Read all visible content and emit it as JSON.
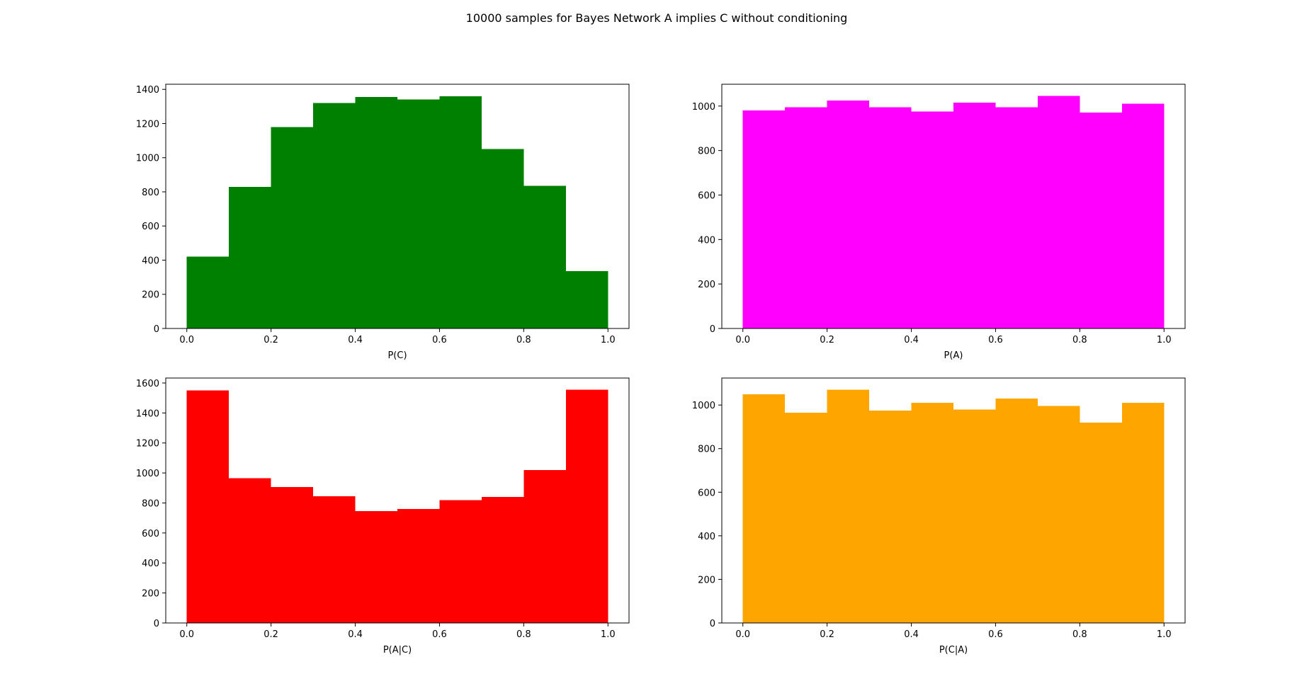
{
  "figure": {
    "title": "10000 samples for Bayes Network A implies C without conditioning"
  },
  "chart_data": [
    {
      "type": "bar",
      "subtype": "histogram",
      "xlabel": "P(C)",
      "color": "#008000",
      "bin_edges": [
        0.0,
        0.1,
        0.2,
        0.3,
        0.4,
        0.5,
        0.6,
        0.7,
        0.8,
        0.9,
        1.0
      ],
      "values": [
        420,
        830,
        1180,
        1320,
        1355,
        1340,
        1360,
        1050,
        835,
        335
      ],
      "xlim": [
        -0.05,
        1.05
      ],
      "ylim": [
        0,
        1430
      ],
      "xticks": [
        0.0,
        0.2,
        0.4,
        0.6,
        0.8,
        1.0
      ],
      "xtick_labels": [
        "0.0",
        "0.2",
        "0.4",
        "0.6",
        "0.8",
        "1.0"
      ],
      "yticks": [
        0,
        200,
        400,
        600,
        800,
        1000,
        1200,
        1400
      ],
      "ytick_labels": [
        "0",
        "200",
        "400",
        "600",
        "800",
        "1000",
        "1200",
        "1400"
      ]
    },
    {
      "type": "bar",
      "subtype": "histogram",
      "xlabel": "P(A)",
      "color": "#ff00ff",
      "bin_edges": [
        0.0,
        0.1,
        0.2,
        0.3,
        0.4,
        0.5,
        0.6,
        0.7,
        0.8,
        0.9,
        1.0
      ],
      "values": [
        980,
        995,
        1025,
        995,
        975,
        1015,
        995,
        1045,
        970,
        1010
      ],
      "xlim": [
        -0.05,
        1.05
      ],
      "ylim": [
        0,
        1098
      ],
      "xticks": [
        0.0,
        0.2,
        0.4,
        0.6,
        0.8,
        1.0
      ],
      "xtick_labels": [
        "0.0",
        "0.2",
        "0.4",
        "0.6",
        "0.8",
        "1.0"
      ],
      "yticks": [
        0,
        200,
        400,
        600,
        800,
        1000
      ],
      "ytick_labels": [
        "0",
        "200",
        "400",
        "600",
        "800",
        "1000"
      ]
    },
    {
      "type": "bar",
      "subtype": "histogram",
      "xlabel": "P(A|C)",
      "color": "#ff0000",
      "bin_edges": [
        0.0,
        0.1,
        0.2,
        0.3,
        0.4,
        0.5,
        0.6,
        0.7,
        0.8,
        0.9,
        1.0
      ],
      "values": [
        1550,
        965,
        905,
        845,
        745,
        760,
        820,
        840,
        1020,
        1555
      ],
      "xlim": [
        -0.05,
        1.05
      ],
      "ylim": [
        0,
        1633
      ],
      "xticks": [
        0.0,
        0.2,
        0.4,
        0.6,
        0.8,
        1.0
      ],
      "xtick_labels": [
        "0.0",
        "0.2",
        "0.4",
        "0.6",
        "0.8",
        "1.0"
      ],
      "yticks": [
        0,
        200,
        400,
        600,
        800,
        1000,
        1200,
        1400,
        1600
      ],
      "ytick_labels": [
        "0",
        "200",
        "400",
        "600",
        "800",
        "1000",
        "1200",
        "1400",
        "1600"
      ]
    },
    {
      "type": "bar",
      "subtype": "histogram",
      "xlabel": "P(C|A)",
      "color": "#ffa500",
      "bin_edges": [
        0.0,
        0.1,
        0.2,
        0.3,
        0.4,
        0.5,
        0.6,
        0.7,
        0.8,
        0.9,
        1.0
      ],
      "values": [
        1050,
        965,
        1070,
        975,
        1010,
        980,
        1030,
        995,
        920,
        1010
      ],
      "xlim": [
        -0.05,
        1.05
      ],
      "ylim": [
        0,
        1124
      ],
      "xticks": [
        0.0,
        0.2,
        0.4,
        0.6,
        0.8,
        1.0
      ],
      "xtick_labels": [
        "0.0",
        "0.2",
        "0.4",
        "0.6",
        "0.8",
        "1.0"
      ],
      "yticks": [
        0,
        200,
        400,
        600,
        800,
        1000
      ],
      "ytick_labels": [
        "0",
        "200",
        "400",
        "600",
        "800",
        "1000"
      ]
    }
  ]
}
